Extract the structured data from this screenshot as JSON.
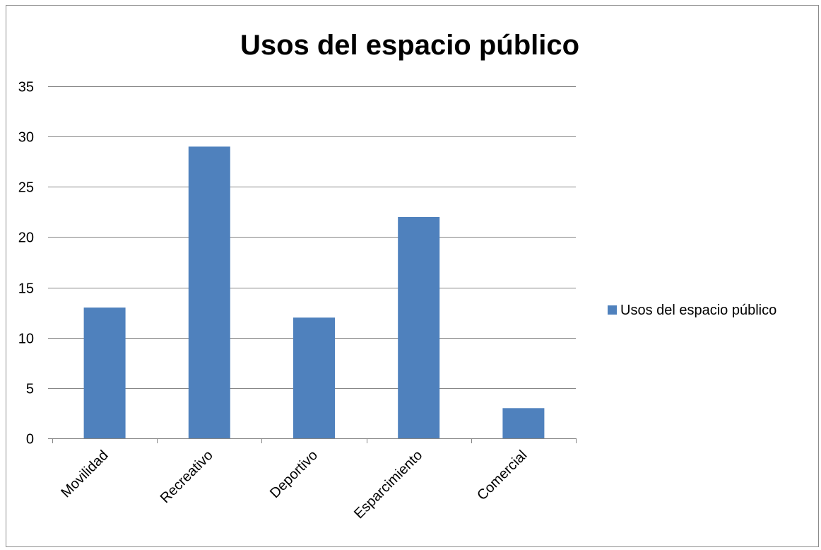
{
  "chart_data": {
    "type": "bar",
    "title": "Usos del espacio público",
    "categories": [
      "Movilidad",
      "Recreativo",
      "Deportivo",
      "Esparcimiento",
      "Comercial"
    ],
    "series": [
      {
        "name": "Usos del espacio público",
        "values": [
          13,
          29,
          12,
          22,
          3
        ],
        "color": "#4f81bd"
      }
    ],
    "ylim": [
      0,
      35
    ],
    "yticks": [
      "0",
      "5",
      "10",
      "15",
      "20",
      "25",
      "30",
      "35"
    ],
    "grid": true,
    "legend_position": "right"
  }
}
